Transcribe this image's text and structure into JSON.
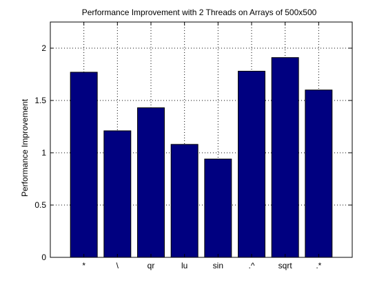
{
  "chart_data": {
    "type": "bar",
    "title": "Performance Improvement with 2 Threads on Arrays of 500x500",
    "xlabel": "",
    "ylabel": "Performance Improvement",
    "categories": [
      "*",
      "\\",
      "qr",
      "lu",
      "sin",
      ".^",
      "sqrt",
      ".*"
    ],
    "values": [
      1.77,
      1.21,
      1.43,
      1.08,
      0.94,
      1.78,
      1.91,
      1.6
    ],
    "ylim": [
      0,
      2.25
    ],
    "yticks": [
      0,
      0.5,
      1,
      1.5,
      2
    ],
    "ytick_labels": [
      "0",
      "0.5",
      "1",
      "1.5",
      "2"
    ],
    "grid": true,
    "grid_style": "dotted",
    "bar_color": "#000080",
    "bar_edge_color": "#000000",
    "legend": false
  }
}
